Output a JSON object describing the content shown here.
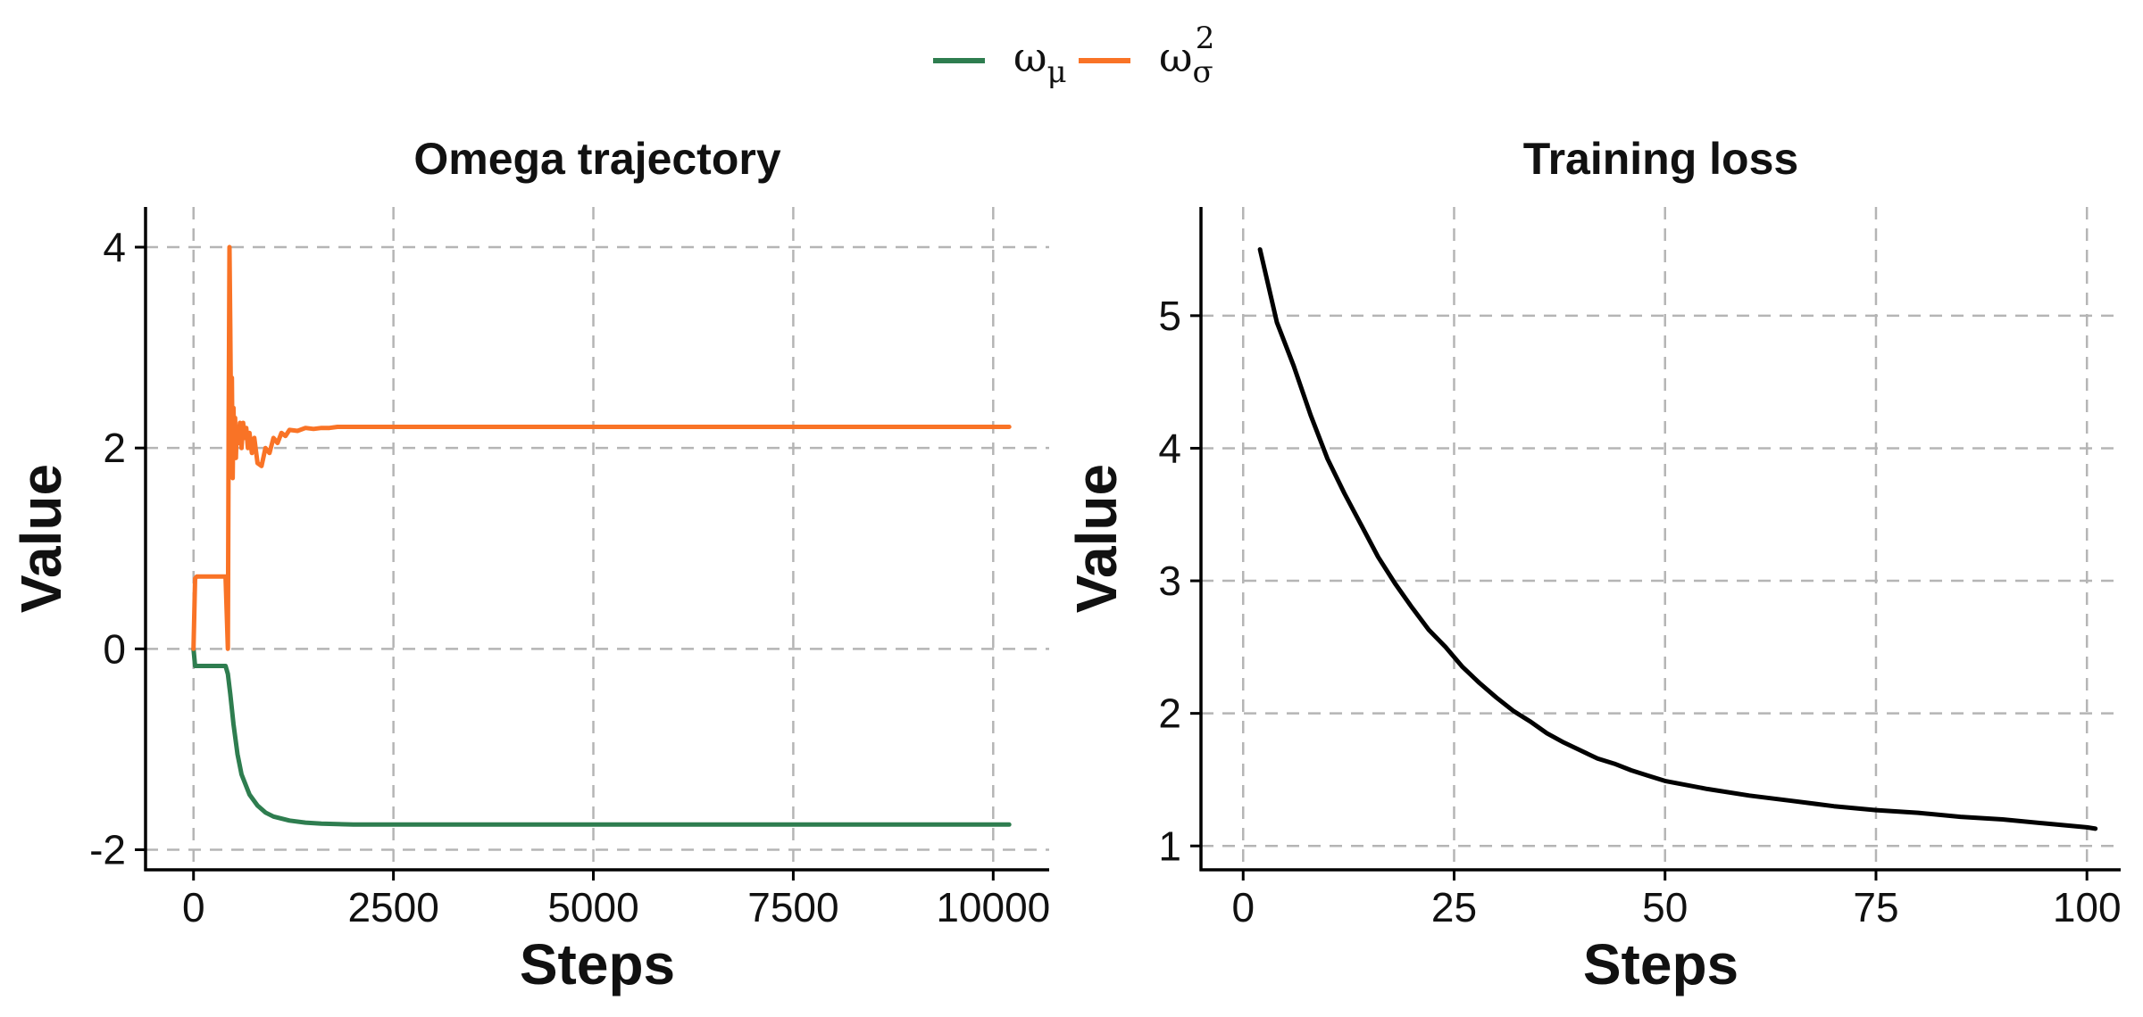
{
  "legend": {
    "items": [
      {
        "label": "ω",
        "sub": "μ",
        "sup": "",
        "color": "#2e7d4f"
      },
      {
        "label": "ω",
        "sub": "σ",
        "sup": "2",
        "color": "#f97326"
      }
    ]
  },
  "chart_data": [
    {
      "type": "line",
      "title": "Omega trajectory",
      "xlabel": "Steps",
      "ylabel": "Value",
      "xlim": [
        -600,
        10700
      ],
      "ylim": [
        -2.2,
        4.4
      ],
      "xticks": [
        0,
        2500,
        5000,
        7500,
        10000
      ],
      "xtick_labels": [
        "0",
        "2500",
        "5000",
        "7500",
        "10000"
      ],
      "yticks": [
        -2,
        0,
        2,
        4
      ],
      "ytick_labels": [
        "-2",
        "0",
        "2",
        "4"
      ],
      "grid": true,
      "series": [
        {
          "name": "ω_μ",
          "color": "#2e7d4f",
          "x": [
            0,
            20,
            50,
            100,
            200,
            300,
            400,
            430,
            460,
            500,
            550,
            600,
            700,
            800,
            900,
            1000,
            1200,
            1400,
            1600,
            1800,
            2000,
            2500,
            3000,
            4000,
            5000,
            6000,
            7000,
            8000,
            9000,
            10000,
            10200
          ],
          "y": [
            0,
            -0.17,
            -0.17,
            -0.17,
            -0.17,
            -0.17,
            -0.17,
            -0.25,
            -0.45,
            -0.75,
            -1.05,
            -1.25,
            -1.45,
            -1.56,
            -1.63,
            -1.67,
            -1.71,
            -1.73,
            -1.74,
            -1.745,
            -1.75,
            -1.75,
            -1.75,
            -1.75,
            -1.75,
            -1.75,
            -1.75,
            -1.75,
            -1.75,
            -1.75,
            -1.75
          ]
        },
        {
          "name": "ω_σ²",
          "color": "#f97326",
          "x": [
            0,
            20,
            40,
            100,
            200,
            300,
            400,
            430,
            440,
            450,
            460,
            470,
            480,
            490,
            500,
            510,
            520,
            530,
            540,
            560,
            580,
            600,
            620,
            640,
            660,
            680,
            700,
            730,
            760,
            800,
            850,
            900,
            950,
            1000,
            1050,
            1100,
            1150,
            1200,
            1300,
            1400,
            1500,
            1600,
            1700,
            1800,
            2000,
            2500,
            3000,
            4000,
            5000,
            6000,
            7000,
            8000,
            9000,
            10000,
            10200
          ],
          "y": [
            0,
            0.7,
            0.72,
            0.72,
            0.72,
            0.72,
            0.72,
            0.0,
            2.3,
            4.0,
            3.2,
            2.2,
            2.7,
            1.7,
            2.4,
            2.0,
            2.3,
            1.9,
            2.2,
            2.05,
            2.25,
            2.0,
            2.25,
            2.1,
            2.2,
            2.0,
            2.15,
            1.95,
            2.1,
            1.85,
            1.82,
            2.0,
            1.95,
            2.1,
            2.05,
            2.15,
            2.12,
            2.18,
            2.17,
            2.2,
            2.19,
            2.2,
            2.2,
            2.21,
            2.21,
            2.21,
            2.21,
            2.21,
            2.21,
            2.21,
            2.21,
            2.21,
            2.21,
            2.21,
            2.21
          ]
        }
      ]
    },
    {
      "type": "line",
      "title": "Training loss",
      "xlabel": "Steps",
      "ylabel": "Value",
      "xlim": [
        -5,
        104
      ],
      "ylim": [
        0.82,
        5.82
      ],
      "xticks": [
        0,
        25,
        50,
        75,
        100
      ],
      "xtick_labels": [
        "0",
        "25",
        "50",
        "75",
        "100"
      ],
      "yticks": [
        1,
        2,
        3,
        4,
        5
      ],
      "ytick_labels": [
        "1",
        "2",
        "3",
        "4",
        "5"
      ],
      "grid": true,
      "series": [
        {
          "color": "#000000",
          "x": [
            2,
            4,
            6,
            8,
            10,
            12,
            14,
            16,
            18,
            20,
            22,
            24,
            26,
            28,
            30,
            32,
            34,
            36,
            38,
            40,
            42,
            44,
            46,
            48,
            50,
            55,
            60,
            65,
            70,
            75,
            80,
            85,
            90,
            95,
            100,
            101
          ],
          "y": [
            5.5,
            4.95,
            4.62,
            4.25,
            3.92,
            3.66,
            3.42,
            3.18,
            2.98,
            2.8,
            2.63,
            2.5,
            2.35,
            2.23,
            2.12,
            2.02,
            1.94,
            1.85,
            1.78,
            1.72,
            1.66,
            1.62,
            1.57,
            1.53,
            1.49,
            1.43,
            1.38,
            1.34,
            1.3,
            1.27,
            1.25,
            1.22,
            1.2,
            1.17,
            1.14,
            1.13
          ]
        }
      ]
    }
  ]
}
